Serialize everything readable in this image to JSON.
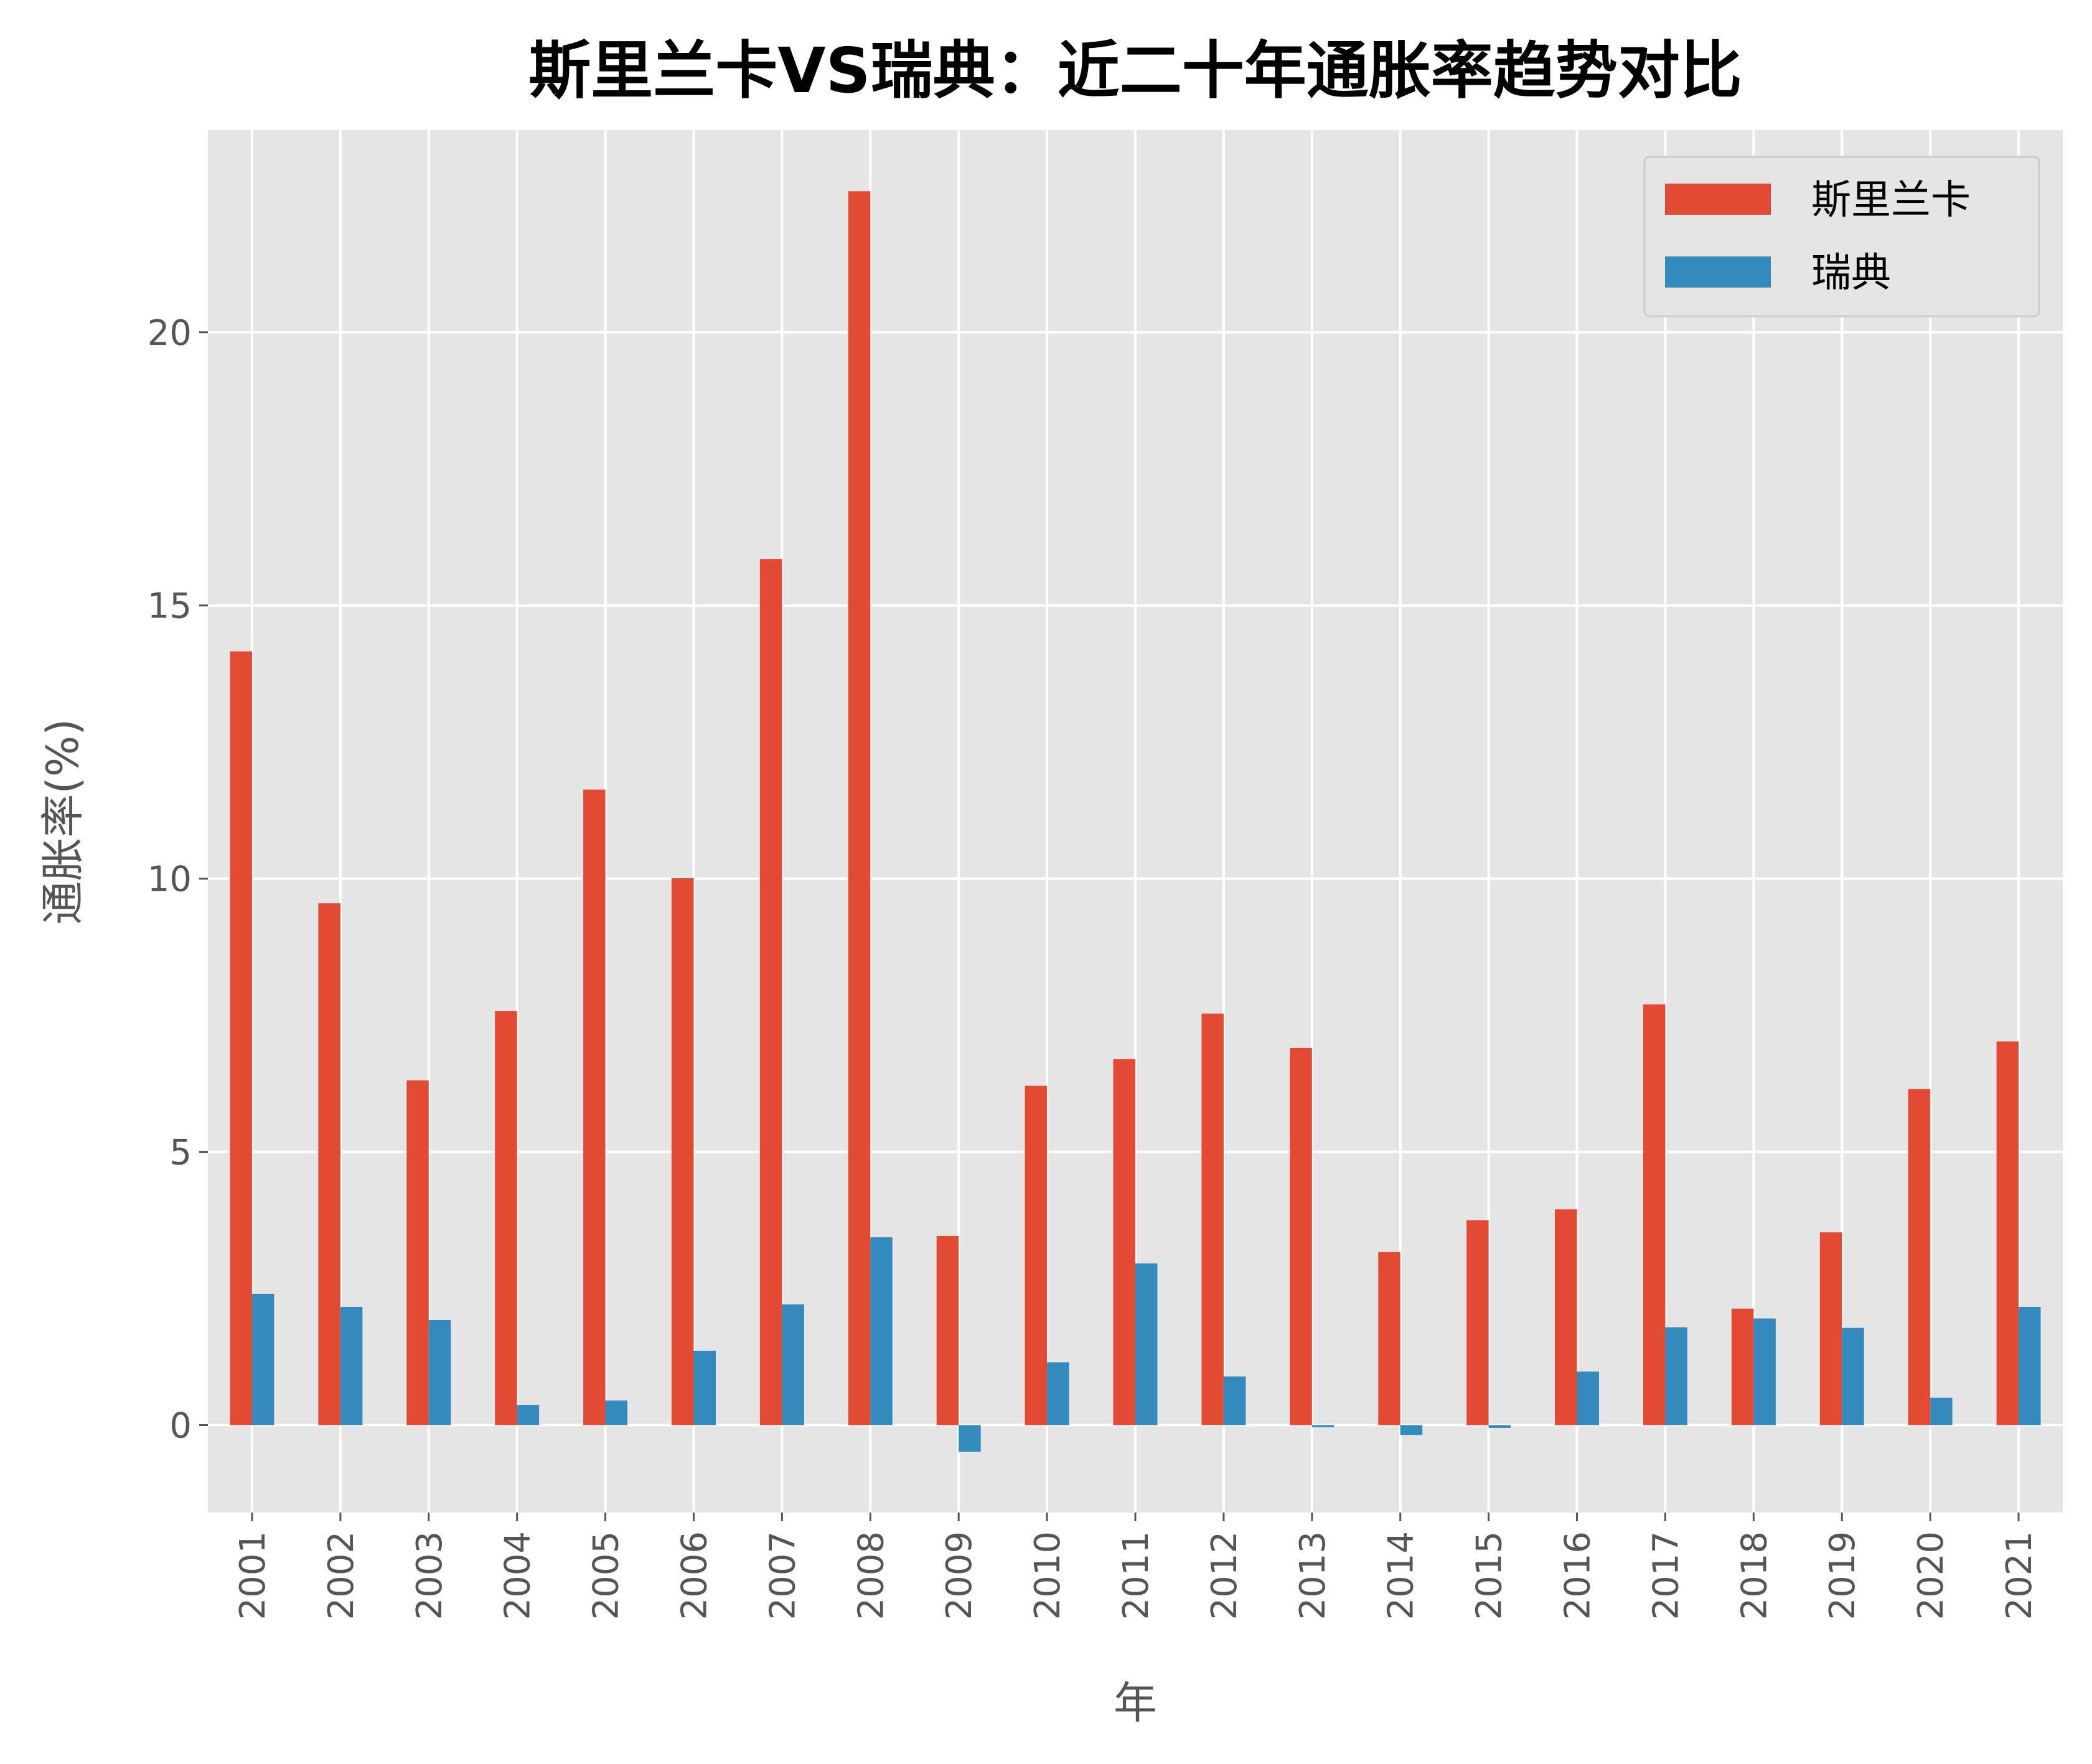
{
  "chart_data": {
    "type": "bar",
    "title": "斯里兰卡VS瑞典：近二十年通胀率趋势对比",
    "xlabel": "年",
    "ylabel": "通胀率(%)",
    "categories": [
      "2001",
      "2002",
      "2003",
      "2004",
      "2005",
      "2006",
      "2007",
      "2008",
      "2009",
      "2010",
      "2011",
      "2012",
      "2013",
      "2014",
      "2015",
      "2016",
      "2017",
      "2018",
      "2019",
      "2020",
      "2021"
    ],
    "series": [
      {
        "name": "斯里兰卡",
        "color": "#E24A33",
        "values": [
          14.16,
          9.55,
          6.31,
          7.58,
          11.63,
          10.01,
          15.85,
          22.58,
          3.46,
          6.21,
          6.7,
          7.53,
          6.9,
          3.17,
          3.75,
          3.95,
          7.7,
          2.13,
          3.53,
          6.15,
          7.02
        ]
      },
      {
        "name": "瑞典",
        "color": "#348ABD",
        "values": [
          2.4,
          2.16,
          1.92,
          0.37,
          0.45,
          1.36,
          2.21,
          3.44,
          -0.49,
          1.15,
          2.96,
          0.89,
          -0.04,
          -0.18,
          -0.05,
          0.98,
          1.79,
          1.95,
          1.78,
          0.5,
          2.16
        ]
      }
    ],
    "yticks": [
      "0",
      "5",
      "10",
      "15",
      "20"
    ],
    "ylim": [
      -1.6,
      23.7
    ],
    "grid": true,
    "legend": "top-right",
    "background": "#E5E5E5"
  }
}
